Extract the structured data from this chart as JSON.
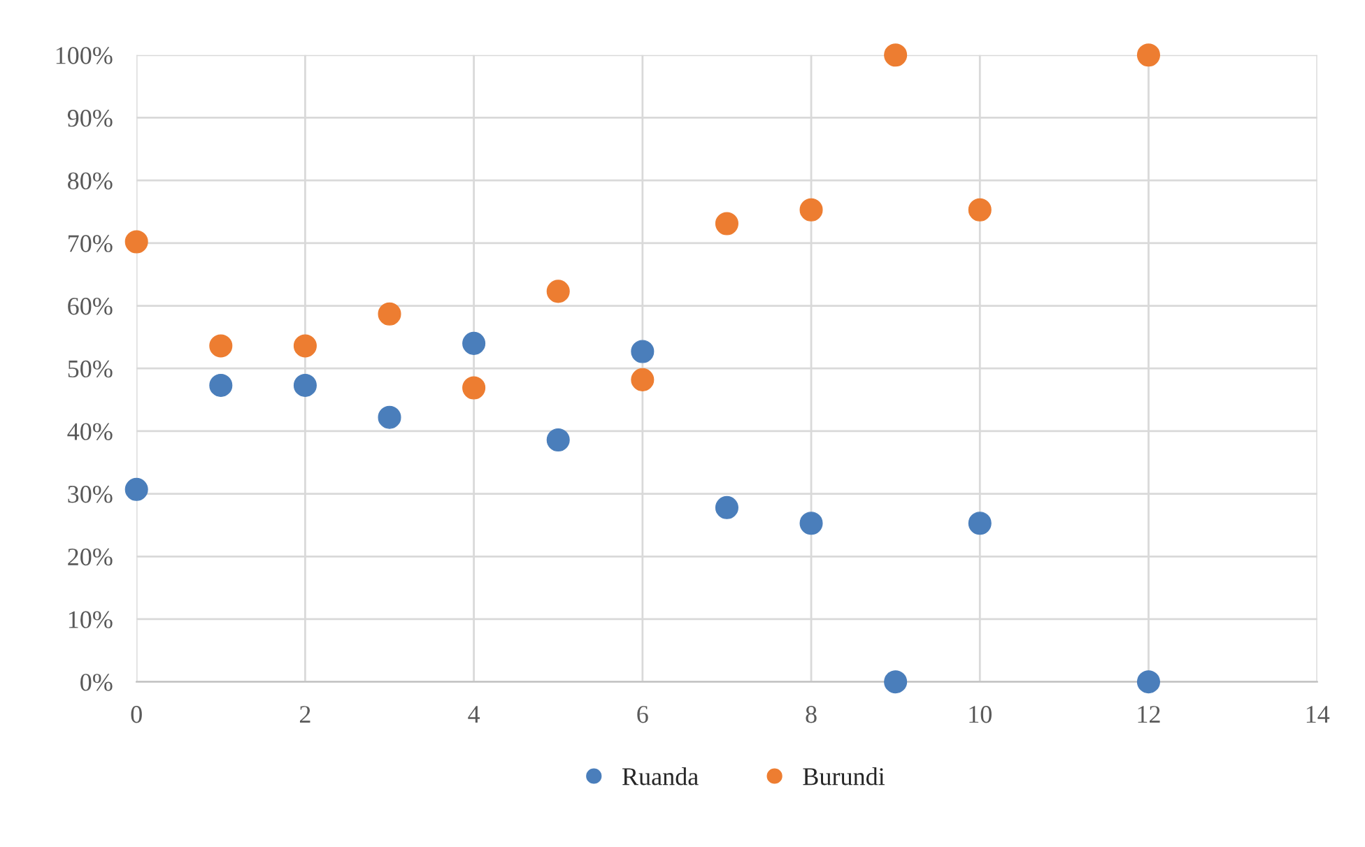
{
  "chart_data": {
    "type": "scatter",
    "xlim": [
      0,
      14
    ],
    "xticks": [
      0,
      2,
      4,
      6,
      8,
      10,
      12,
      14
    ],
    "ylim": [
      0,
      100
    ],
    "yticks": [
      {
        "value": 0,
        "label": "0%"
      },
      {
        "value": 10,
        "label": "10%"
      },
      {
        "value": 20,
        "label": "20%"
      },
      {
        "value": 30,
        "label": "30%"
      },
      {
        "value": 40,
        "label": "40%"
      },
      {
        "value": 50,
        "label": "50%"
      },
      {
        "value": 60,
        "label": "60%"
      },
      {
        "value": 70,
        "label": "70%"
      },
      {
        "value": 80,
        "label": "80%"
      },
      {
        "value": 90,
        "label": "90%"
      },
      {
        "value": 100,
        "label": "100%"
      }
    ],
    "grid": true,
    "legend": "bottom",
    "marker": "circle",
    "series": [
      {
        "name": "Ruanda",
        "color": "#4a7ebb",
        "x": [
          0,
          1,
          2,
          3,
          4,
          5,
          6,
          7,
          8,
          9,
          10,
          12
        ],
        "values": [
          30.7,
          47.3,
          47.3,
          42.2,
          54,
          38.6,
          52.7,
          27.8,
          25.3,
          0,
          25.3,
          0
        ]
      },
      {
        "name": "Burundi",
        "color": "#ed7d31",
        "x": [
          0,
          1,
          2,
          3,
          4,
          5,
          6,
          7,
          8,
          9,
          10,
          12
        ],
        "values": [
          70.2,
          53.6,
          53.6,
          58.7,
          46.9,
          62.3,
          48.2,
          73.1,
          75.3,
          100,
          75.3,
          100
        ]
      }
    ]
  }
}
